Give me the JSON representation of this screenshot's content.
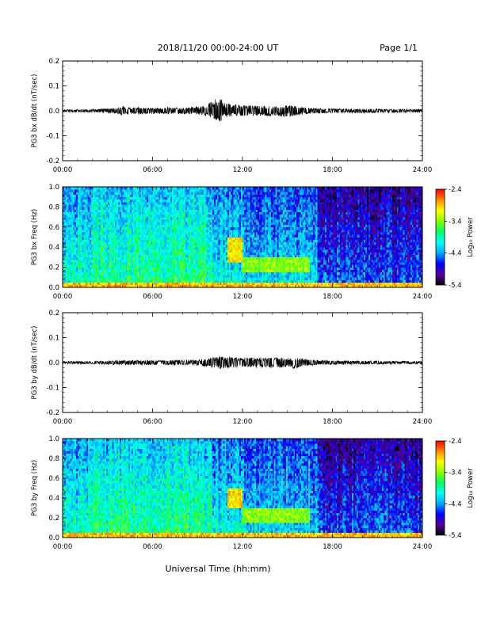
{
  "header": {
    "title": "2018/11/20  00:00-24:00 UT",
    "page": "Page 1/1"
  },
  "xaxis": {
    "label": "Universal Time (hh:mm)",
    "tick_labels": [
      "00:00",
      "06:00",
      "12:00",
      "18:00",
      "24:00"
    ]
  },
  "colorbar": {
    "label": "Log₁₀ Power",
    "tick_labels": [
      "-2.4",
      "-3.4",
      "-4.4",
      "-5.4"
    ],
    "colors": [
      "#000000",
      "#5a009a",
      "#0000ff",
      "#00aaff",
      "#00ffff",
      "#00ff66",
      "#88ff00",
      "#ffff00",
      "#ff8800",
      "#ff0000"
    ]
  },
  "chart_data": [
    {
      "type": "line",
      "ylabel": "PG3 bx dB/dt (nT/sec)",
      "ylim": [
        -0.2,
        0.2
      ],
      "xlim": [
        0,
        24
      ],
      "y_tick_labels": [
        "0.2",
        "0.1",
        "0.0",
        "-0.1",
        "-0.2"
      ],
      "series": [
        {
          "x": [
            0,
            2,
            3.5,
            4,
            4.5,
            5,
            6,
            7,
            8,
            9,
            9.5,
            10,
            10.3,
            10.5,
            10.8,
            11,
            11.5,
            12,
            13,
            14,
            15,
            16,
            16.5,
            17,
            18,
            20,
            22,
            24
          ],
          "y_max": [
            0.005,
            0.007,
            0.01,
            0.02,
            0.014,
            0.015,
            0.012,
            0.014,
            0.012,
            0.018,
            0.02,
            0.04,
            0.05,
            0.07,
            0.03,
            0.03,
            0.025,
            0.022,
            0.02,
            0.02,
            0.022,
            0.015,
            0.012,
            0.01,
            0.009,
            0.008,
            0.007,
            0.006
          ],
          "y_min": [
            -0.005,
            -0.006,
            -0.01,
            -0.02,
            -0.012,
            -0.014,
            -0.012,
            -0.012,
            -0.012,
            -0.015,
            -0.02,
            -0.03,
            -0.04,
            -0.045,
            -0.025,
            -0.025,
            -0.02,
            -0.02,
            -0.02,
            -0.02,
            -0.025,
            -0.015,
            -0.012,
            -0.01,
            -0.009,
            -0.008,
            -0.007,
            -0.006
          ]
        }
      ]
    },
    {
      "type": "heatmap",
      "ylabel": "PG3 bx Freq (Hz)",
      "ylim": [
        0,
        1.0
      ],
      "xlim": [
        0,
        24
      ],
      "zlim": [
        -5.4,
        -2.4
      ],
      "y_tick_labels": [
        "1.0",
        "0.8",
        "0.6",
        "0.4",
        "0.2",
        "0.0"
      ],
      "features": [
        {
          "x0": 11,
          "x1": 12,
          "f0": 0.25,
          "f1": 0.5,
          "level": -3.0
        },
        {
          "x0": 12,
          "x1": 16.5,
          "f0": 0.15,
          "f1": 0.3,
          "level": -3.4
        },
        {
          "x0": 0,
          "x1": 24,
          "f0": 0,
          "f1": 0.05,
          "level": -2.9
        }
      ]
    },
    {
      "type": "line",
      "ylabel": "PG3 by dB/dt (nT/sec)",
      "ylim": [
        -0.2,
        0.2
      ],
      "xlim": [
        0,
        24
      ],
      "y_tick_labels": [
        "0.2",
        "0.1",
        "0.0",
        "-0.1",
        "-0.2"
      ],
      "series": [
        {
          "x": [
            0,
            2,
            3.5,
            4,
            5,
            6,
            7,
            8,
            9,
            10,
            10.5,
            11,
            12,
            13,
            14,
            15,
            15.5,
            16,
            16.5,
            17,
            18,
            20,
            22,
            24
          ],
          "y_max": [
            0.005,
            0.006,
            0.008,
            0.01,
            0.01,
            0.009,
            0.01,
            0.01,
            0.012,
            0.02,
            0.025,
            0.022,
            0.02,
            0.02,
            0.022,
            0.018,
            0.02,
            0.015,
            0.012,
            0.01,
            0.008,
            0.007,
            0.006,
            0.006
          ],
          "y_min": [
            -0.005,
            -0.006,
            -0.008,
            -0.01,
            -0.01,
            -0.009,
            -0.01,
            -0.01,
            -0.012,
            -0.02,
            -0.025,
            -0.022,
            -0.02,
            -0.02,
            -0.022,
            -0.02,
            -0.025,
            -0.015,
            -0.012,
            -0.01,
            -0.008,
            -0.007,
            -0.006,
            -0.006
          ]
        }
      ]
    },
    {
      "type": "heatmap",
      "ylabel": "PG3 by Freq (Hz)",
      "ylim": [
        0,
        1.0
      ],
      "xlim": [
        0,
        24
      ],
      "zlim": [
        -5.4,
        -2.4
      ],
      "y_tick_labels": [
        "1.0",
        "0.8",
        "0.6",
        "0.4",
        "0.2",
        "0.0"
      ],
      "features": [
        {
          "x0": 11,
          "x1": 12,
          "f0": 0.3,
          "f1": 0.5,
          "level": -3.0
        },
        {
          "x0": 12,
          "x1": 16.5,
          "f0": 0.15,
          "f1": 0.3,
          "level": -3.4
        },
        {
          "x0": 0,
          "x1": 24,
          "f0": 0,
          "f1": 0.05,
          "level": -2.9
        }
      ]
    }
  ]
}
